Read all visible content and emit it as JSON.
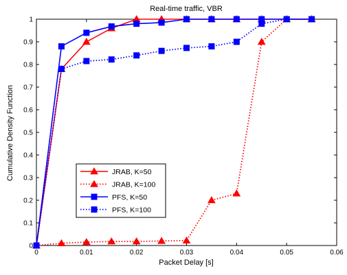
{
  "chart_data": {
    "type": "line",
    "title": "Real-time traffic, VBR",
    "xlabel": "Packet Delay [s]",
    "ylabel": "Cumulative Density Function",
    "xlim": [
      0,
      0.06
    ],
    "ylim": [
      0,
      1
    ],
    "xticks": [
      "0",
      "0.01",
      "0.02",
      "0.03",
      "0.04",
      "0.05",
      "0.06"
    ],
    "yticks": [
      "0",
      "0.1",
      "0.2",
      "0.3",
      "0.4",
      "0.5",
      "0.6",
      "0.7",
      "0.8",
      "0.9",
      "1"
    ],
    "grid": false,
    "legend_position": "lower-left",
    "series": [
      {
        "name": "JRAB, K=50",
        "color": "#ff0000",
        "line_style": "solid",
        "marker": "triangle",
        "x": [
          0,
          0.005,
          0.01,
          0.015,
          0.02,
          0.025,
          0.03,
          0.035,
          0.04,
          0.045,
          0.05,
          0.055
        ],
        "y": [
          0,
          0.78,
          0.9,
          0.96,
          1.0,
          1.0,
          1.0,
          1.0,
          1.0,
          1.0,
          1.0,
          1.0
        ]
      },
      {
        "name": "JRAB, K=100",
        "color": "#ff0000",
        "line_style": "dotted",
        "marker": "triangle",
        "x": [
          0,
          0.005,
          0.01,
          0.015,
          0.02,
          0.025,
          0.03,
          0.035,
          0.04,
          0.045,
          0.05,
          0.055
        ],
        "y": [
          0,
          0.01,
          0.015,
          0.018,
          0.018,
          0.02,
          0.022,
          0.2,
          0.23,
          0.9,
          1.0,
          1.0
        ]
      },
      {
        "name": "PFS, K=50",
        "color": "#0000ff",
        "line_style": "solid",
        "marker": "square",
        "x": [
          0,
          0.005,
          0.01,
          0.015,
          0.02,
          0.025,
          0.03,
          0.035,
          0.04,
          0.045,
          0.05,
          0.055
        ],
        "y": [
          0,
          0.88,
          0.94,
          0.968,
          0.98,
          0.985,
          1.0,
          1.0,
          1.0,
          1.0,
          1.0,
          1.0
        ]
      },
      {
        "name": "PFS, K=100",
        "color": "#0000ff",
        "line_style": "dotted",
        "marker": "square",
        "x": [
          0,
          0.005,
          0.01,
          0.015,
          0.02,
          0.025,
          0.03,
          0.035,
          0.04,
          0.045,
          0.05,
          0.055
        ],
        "y": [
          0,
          0.78,
          0.815,
          0.822,
          0.84,
          0.86,
          0.873,
          0.88,
          0.9,
          0.98,
          1.0,
          1.0
        ]
      }
    ]
  }
}
